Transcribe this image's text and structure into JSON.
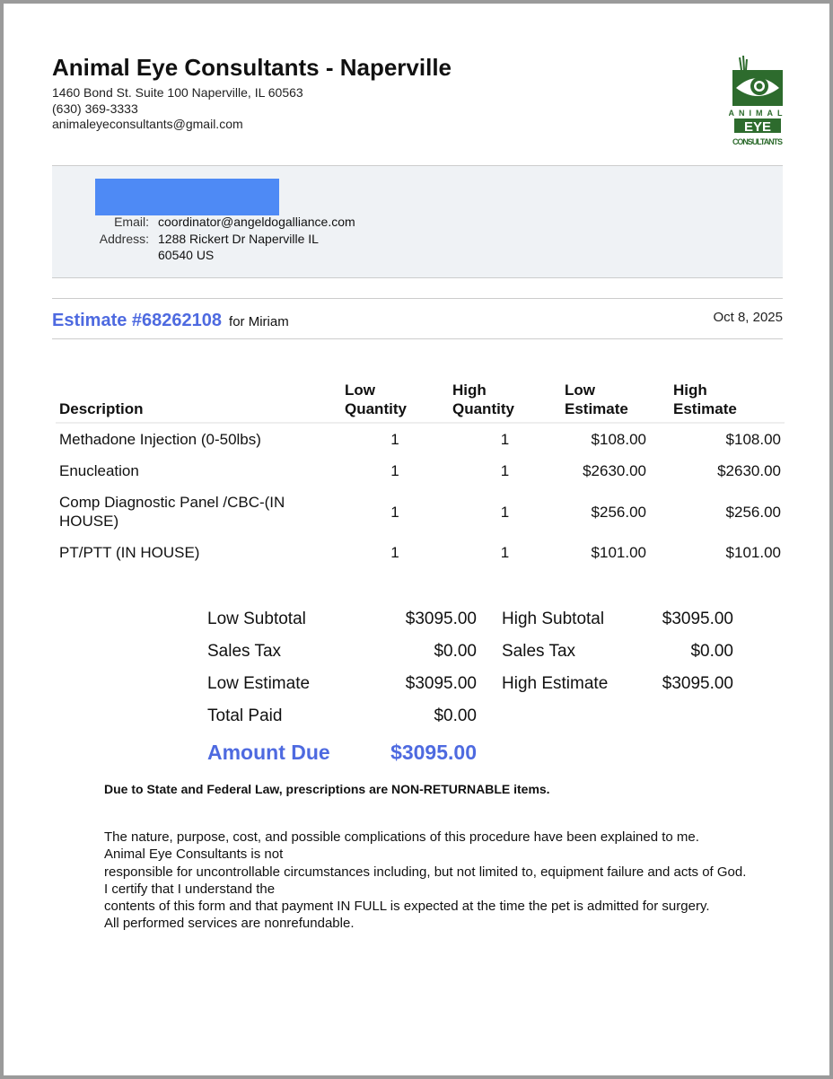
{
  "clinic": {
    "name": "Animal Eye Consultants - Naperville",
    "address": "1460 Bond St. Suite 100 Naperville, IL 60563",
    "phone": "(630) 369-3333",
    "email": "animaleyeconsultants@gmail.com",
    "logo_text": "ANIMAL EYE CONSULTANTS",
    "logo_color": "#2d6b2d"
  },
  "client": {
    "email_label": "Email:",
    "email": "coordinator@angeldogalliance.com",
    "address_label": "Address:",
    "address_line1": "1288 Rickert Dr Naperville IL",
    "address_line2": "60540 US",
    "redaction_color": "#4e8af5"
  },
  "estimate": {
    "number": "Estimate #68262108",
    "for": "for Miriam",
    "date": "Oct 8, 2025",
    "accent": "#4e6ae0"
  },
  "table": {
    "headers": [
      "Description",
      "Low Quantity",
      "High Quantity",
      "Low Estimate",
      "High Estimate"
    ],
    "rows": [
      [
        "Methadone Injection (0-50lbs)",
        "1",
        "1",
        "$108.00",
        "$108.00"
      ],
      [
        "Enucleation",
        "1",
        "1",
        "$2630.00",
        "$2630.00"
      ],
      [
        "Comp Diagnostic Panel /CBC-(IN HOUSE)",
        "1",
        "1",
        "$256.00",
        "$256.00"
      ],
      [
        "PT/PTT (IN HOUSE)",
        "1",
        "1",
        "$101.00",
        "$101.00"
      ]
    ]
  },
  "totals": {
    "low_subtotal_label": "Low Subtotal",
    "low_subtotal": "$3095.00",
    "high_subtotal_label": "High Subtotal",
    "high_subtotal": "$3095.00",
    "low_tax_label": "Sales Tax",
    "low_tax": "$0.00",
    "high_tax_label": "Sales Tax",
    "high_tax": "$0.00",
    "low_estimate_label": "Low Estimate",
    "low_estimate": "$3095.00",
    "high_estimate_label": "High Estimate",
    "high_estimate": "$3095.00",
    "paid_label": "Total Paid",
    "paid": "$0.00",
    "due_label": "Amount Due",
    "due": "$3095.00"
  },
  "notes": {
    "prescriptions": "Due to State and Federal Law, prescriptions are NON-RETURNABLE items.",
    "lines": [
      "The nature, purpose, cost, and possible complications of this procedure have been explained to me.",
      "Animal Eye Consultants is not",
      "responsible for uncontrollable circumstances including, but not limited to, equipment failure and acts of God. I certify that I understand the",
      "contents of this form and that payment IN FULL is expected at the time the pet is admitted for surgery.",
      "All performed services are nonrefundable."
    ]
  }
}
